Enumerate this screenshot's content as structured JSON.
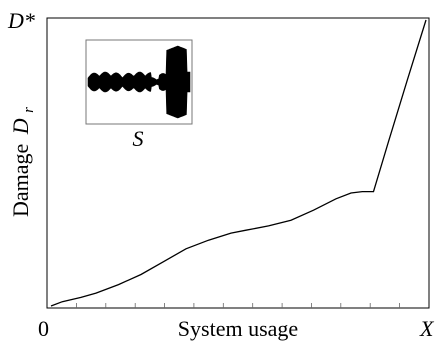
{
  "chart_data": {
    "type": "line",
    "xlabel": "System usage",
    "ylabel_text": "Damage",
    "ylabel_symbol": "D",
    "ylabel_subscript": "r",
    "x_origin_label": "0",
    "x_end_label": "X",
    "y_top_label": "D*",
    "xlim": [
      0,
      1
    ],
    "ylim": [
      0,
      1
    ],
    "series": [
      {
        "x": [
          0,
          0.03,
          0.08,
          0.12,
          0.18,
          0.24,
          0.3,
          0.36,
          0.42,
          0.48,
          0.52,
          0.58,
          0.64,
          0.7,
          0.76,
          0.8,
          0.83,
          0.86,
          0.9,
          0.95,
          1.0
        ],
        "y": [
          0.0,
          0.015,
          0.03,
          0.045,
          0.075,
          0.11,
          0.155,
          0.2,
          0.23,
          0.255,
          0.265,
          0.28,
          0.3,
          0.335,
          0.375,
          0.395,
          0.4,
          0.4,
          0.575,
          0.79,
          1.0
        ]
      }
    ],
    "inset": {
      "caption": "S",
      "description_kind": "waveform"
    },
    "x_ticks_count": 12,
    "grid": false
  }
}
